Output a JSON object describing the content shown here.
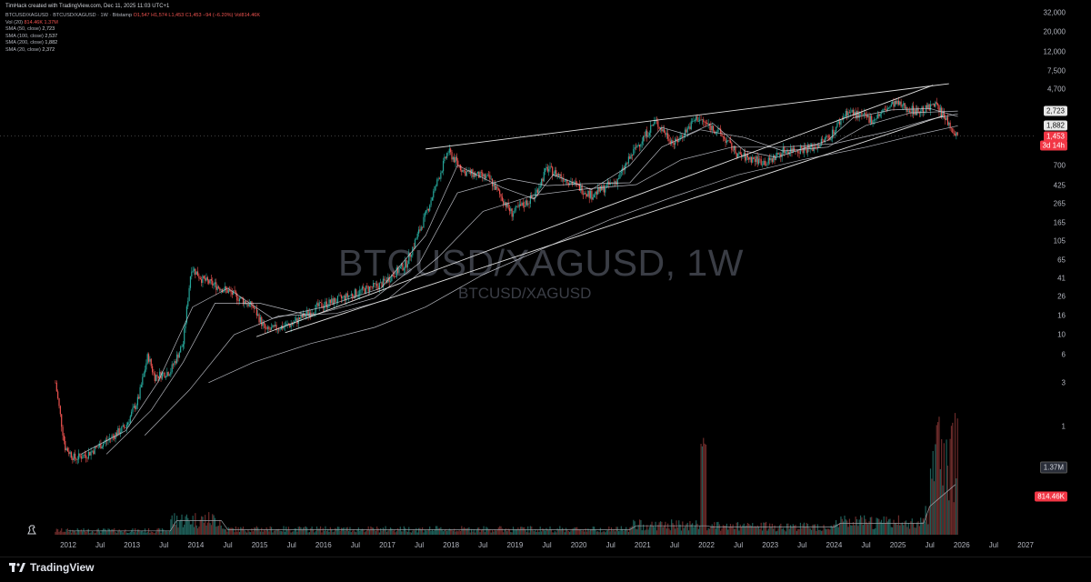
{
  "top_caption": "TimHack created with TradingView.com, Dec 11, 2025 11:03 UTC+1",
  "header": {
    "symbol_line": "BTCUSD/XAGUSD · BTCUSD/XAGUSD · 1W · Bitstamp",
    "ohlc": "O1,547 H1,574 L1,453 C1,453 −94 (−6.20%) Vol814.46K",
    "indicators": [
      {
        "label": "Vol (20)",
        "value": "814.46K  1.37M"
      },
      {
        "label": "SMA (50, close)",
        "value": "2,723"
      },
      {
        "label": "SMA (100, close)",
        "value": "2,537"
      },
      {
        "label": "SMA (200, close)",
        "value": "1,882"
      },
      {
        "label": "SMA (20, close)",
        "value": "2,372"
      }
    ]
  },
  "watermark": {
    "title": "BTCUSD/XAGUSD, 1W",
    "subtitle": "BTCUSD/XAGUSD"
  },
  "brand": "TradingView",
  "colors": {
    "up": "#26a69a",
    "down": "#ef5350",
    "sma": "#d1d4dc",
    "trend": "#e0e0e0",
    "bg": "#000000"
  },
  "price_tags": [
    {
      "value": "2,723",
      "style": "w"
    },
    {
      "value": "1,882",
      "style": "w"
    },
    {
      "value": "1,453",
      "style": "r"
    },
    {
      "value": "3d 14h",
      "style": "r"
    }
  ],
  "volume_tags": [
    {
      "value": "1.37M",
      "style": "vol2"
    },
    {
      "value": "814.46K",
      "style": "vol"
    }
  ],
  "chart_data": {
    "type": "candlestick",
    "scale": "log",
    "y_ticks": [
      "32,000",
      "20,000",
      "12,000",
      "7,500",
      "4,700",
      "2,723",
      "1,882",
      "700",
      "425",
      "265",
      "165",
      "105",
      "65",
      "41",
      "26",
      "16",
      "10",
      "6",
      "3",
      "1"
    ],
    "x_ticks": [
      "2012",
      "Jul",
      "2013",
      "Jul",
      "2014",
      "Jul",
      "2015",
      "Jul",
      "2016",
      "Jul",
      "2017",
      "Jul",
      "2018",
      "Jul",
      "2019",
      "Jul",
      "2020",
      "Jul",
      "2021",
      "Jul",
      "2022",
      "Jul",
      "2023",
      "Jul",
      "2024",
      "Jul",
      "2025",
      "Jul",
      "2026",
      "Jul",
      "2027"
    ],
    "price_path": [
      [
        2011.8,
        3
      ],
      [
        2011.95,
        0.6
      ],
      [
        2012.1,
        0.45
      ],
      [
        2012.3,
        0.5
      ],
      [
        2012.6,
        0.7
      ],
      [
        2012.9,
        1.0
      ],
      [
        2013.1,
        2
      ],
      [
        2013.25,
        6
      ],
      [
        2013.35,
        3.5
      ],
      [
        2013.6,
        4
      ],
      [
        2013.8,
        8
      ],
      [
        2013.93,
        55
      ],
      [
        2014.1,
        40
      ],
      [
        2014.5,
        30
      ],
      [
        2014.9,
        20
      ],
      [
        2015.1,
        11
      ],
      [
        2015.5,
        13
      ],
      [
        2015.9,
        20
      ],
      [
        2016.3,
        25
      ],
      [
        2016.7,
        32
      ],
      [
        2016.9,
        35
      ],
      [
        2017.3,
        60
      ],
      [
        2017.6,
        200
      ],
      [
        2017.95,
        1000
      ],
      [
        2018.2,
        600
      ],
      [
        2018.6,
        500
      ],
      [
        2018.95,
        210
      ],
      [
        2019.3,
        320
      ],
      [
        2019.5,
        650
      ],
      [
        2019.9,
        450
      ],
      [
        2020.2,
        330
      ],
      [
        2020.6,
        480
      ],
      [
        2020.9,
        1100
      ],
      [
        2021.2,
        2100
      ],
      [
        2021.5,
        1200
      ],
      [
        2021.85,
        2300
      ],
      [
        2022.2,
        1600
      ],
      [
        2022.5,
        900
      ],
      [
        2022.95,
        750
      ],
      [
        2023.2,
        1000
      ],
      [
        2023.7,
        1100
      ],
      [
        2023.95,
        1500
      ],
      [
        2024.2,
        2700
      ],
      [
        2024.6,
        2200
      ],
      [
        2024.95,
        3300
      ],
      [
        2025.3,
        2700
      ],
      [
        2025.6,
        3100
      ],
      [
        2025.94,
        1453
      ]
    ],
    "sma_lines": [
      {
        "name": "SMA (20, close)",
        "value": 2372,
        "path": [
          [
            2012.2,
            0.5
          ],
          [
            2012.9,
            0.9
          ],
          [
            2013.4,
            3
          ],
          [
            2013.95,
            20
          ],
          [
            2014.5,
            32
          ],
          [
            2015.2,
            15
          ],
          [
            2016.0,
            20
          ],
          [
            2016.9,
            32
          ],
          [
            2017.6,
            120
          ],
          [
            2018.1,
            700
          ],
          [
            2018.8,
            400
          ],
          [
            2019.3,
            300
          ],
          [
            2019.6,
            550
          ],
          [
            2020.2,
            380
          ],
          [
            2020.8,
            700
          ],
          [
            2021.3,
            1800
          ],
          [
            2021.7,
            1500
          ],
          [
            2022.1,
            2000
          ],
          [
            2022.6,
            1000
          ],
          [
            2023.1,
            850
          ],
          [
            2023.9,
            1300
          ],
          [
            2024.3,
            2300
          ],
          [
            2024.9,
            2800
          ],
          [
            2025.5,
            2900
          ],
          [
            2025.94,
            2372
          ]
        ]
      },
      {
        "name": "SMA (50, close)",
        "value": 2723,
        "path": [
          [
            2012.6,
            0.5
          ],
          [
            2013.3,
            1.5
          ],
          [
            2013.8,
            5
          ],
          [
            2014.3,
            22
          ],
          [
            2015.0,
            22
          ],
          [
            2015.8,
            16
          ],
          [
            2016.8,
            25
          ],
          [
            2017.5,
            60
          ],
          [
            2018.1,
            350
          ],
          [
            2018.9,
            500
          ],
          [
            2019.5,
            420
          ],
          [
            2020.1,
            440
          ],
          [
            2020.8,
            450
          ],
          [
            2021.3,
            1100
          ],
          [
            2021.9,
            1700
          ],
          [
            2022.6,
            1400
          ],
          [
            2023.2,
            1000
          ],
          [
            2023.9,
            1100
          ],
          [
            2024.5,
            1900
          ],
          [
            2025.2,
            2600
          ],
          [
            2025.94,
            2723
          ]
        ]
      },
      {
        "name": "SMA (100, close)",
        "value": 2537,
        "path": [
          [
            2013.2,
            0.8
          ],
          [
            2013.9,
            2.5
          ],
          [
            2014.6,
            10
          ],
          [
            2015.3,
            16
          ],
          [
            2016.2,
            17
          ],
          [
            2017.0,
            24
          ],
          [
            2017.8,
            70
          ],
          [
            2018.5,
            220
          ],
          [
            2019.3,
            330
          ],
          [
            2020.0,
            380
          ],
          [
            2020.9,
            430
          ],
          [
            2021.6,
            800
          ],
          [
            2022.4,
            1100
          ],
          [
            2023.2,
            1100
          ],
          [
            2024.0,
            1200
          ],
          [
            2024.8,
            1600
          ],
          [
            2025.5,
            2200
          ],
          [
            2025.94,
            2537
          ]
        ]
      },
      {
        "name": "SMA (200, close)",
        "value": 1882,
        "path": [
          [
            2014.2,
            3
          ],
          [
            2014.9,
            5
          ],
          [
            2015.8,
            8
          ],
          [
            2016.8,
            12
          ],
          [
            2017.6,
            20
          ],
          [
            2018.5,
            45
          ],
          [
            2019.5,
            90
          ],
          [
            2020.5,
            180
          ],
          [
            2021.5,
            320
          ],
          [
            2022.5,
            550
          ],
          [
            2023.5,
            800
          ],
          [
            2024.5,
            1100
          ],
          [
            2025.3,
            1500
          ],
          [
            2025.94,
            1882
          ]
        ]
      }
    ],
    "trendlines": [
      {
        "from": [
          2014.95,
          9.5
        ],
        "to": [
          2025.55,
          5200
        ]
      },
      {
        "from": [
          2017.6,
          1050
        ],
        "to": [
          2025.8,
          5400
        ]
      },
      {
        "from": [
          2015.4,
          10.5
        ],
        "to": [
          2025.7,
          2400
        ]
      }
    ],
    "volume": {
      "last": "814.46K",
      "vol_ma": "1.37M"
    }
  }
}
